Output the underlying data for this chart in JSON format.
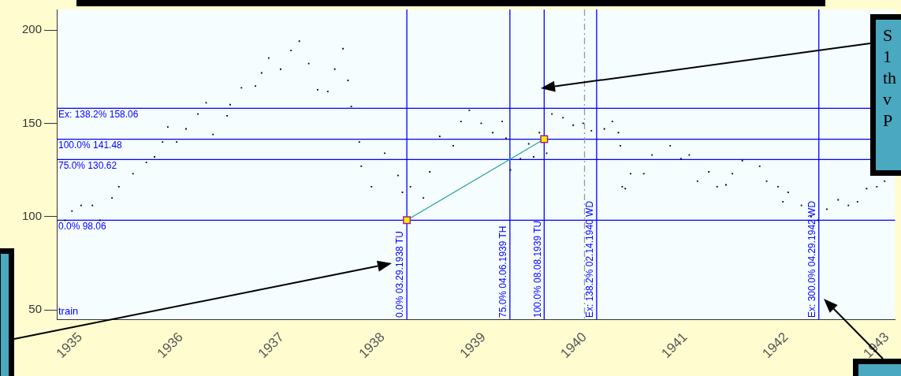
{
  "chart_data": {
    "type": "scatter",
    "marker": "square",
    "grid": false,
    "legend": false,
    "xlim": [
      "1934-10-08",
      "1943-01-30"
    ],
    "xticks": [
      "1935",
      "1936",
      "1937",
      "1938",
      "1939",
      "1940",
      "1941",
      "1942",
      "1943"
    ],
    "ylim": [
      45,
      211
    ],
    "yticks": [
      50,
      100,
      150,
      200
    ],
    "series": [
      {
        "color": "#000000",
        "x": [
          "1934-11-07",
          "1934-12-02",
          "1935-01-04",
          "1935-02-14",
          "1935-03-13",
          "1935-04-26",
          "1935-05-21",
          "1935-07-11",
          "1935-08-28",
          "1935-09-27",
          "1935-10-26",
          "1935-11-14",
          "1935-12-16",
          "1936-01-19",
          "1936-03-02",
          "1936-04-01",
          "1936-04-26",
          "1936-06-16",
          "1936-06-27",
          "1936-08-07",
          "1936-09-27",
          "1936-10-19",
          "1936-11-14",
          "1936-12-27",
          "1937-02-03",
          "1937-03-05",
          "1937-04-08",
          "1937-05-10",
          "1937-06-16",
          "1937-07-11",
          "1937-08-10",
          "1937-08-28",
          "1937-09-09",
          "1937-10-08",
          "1937-10-15",
          "1937-11-21",
          "1938-01-08",
          "1938-02-25",
          "1938-03-13",
          "1938-04-11",
          "1938-05-28",
          "1938-06-20",
          "1938-07-26",
          "1938-09-13",
          "1938-10-11",
          "1938-11-10",
          "1938-12-23",
          "1939-02-03",
          "1939-03-09",
          "1939-03-23",
          "1939-04-08",
          "1939-05-14",
          "1939-06-13",
          "1939-07-01",
          "1939-07-22",
          "1939-08-17",
          "1939-09-05",
          "1939-10-15",
          "1939-11-21",
          "1939-12-27",
          "1940-01-26",
          "1940-03-13",
          "1940-04-11",
          "1940-05-03",
          "1940-05-10",
          "1940-05-17",
          "1940-05-28",
          "1940-06-16",
          "1940-08-03",
          "1940-09-02",
          "1940-11-07",
          "1940-12-16",
          "1941-01-15",
          "1941-02-14",
          "1941-03-27",
          "1941-04-26",
          "1941-05-28",
          "1941-06-20",
          "1941-07-26",
          "1941-09-27",
          "1941-10-22",
          "1941-12-02",
          "1941-12-20",
          "1942-01-08",
          "1942-02-25",
          "1942-04-01",
          "1942-04-26",
          "1942-05-28",
          "1942-07-08",
          "1942-08-14",
          "1942-09-16",
          "1942-10-19",
          "1942-11-25",
          "1942-12-23"
        ],
        "values": [
          98,
          103,
          106,
          106,
          98,
          110,
          116,
          123,
          129,
          132,
          140,
          148,
          140,
          147,
          155,
          161,
          144,
          154,
          160,
          169,
          170,
          177,
          185,
          179,
          189,
          194,
          182,
          168,
          167,
          179,
          190,
          173,
          159,
          140,
          127,
          116,
          134,
          122,
          113,
          116,
          110,
          124,
          143,
          138,
          151,
          157,
          150,
          145,
          151,
          142,
          125,
          131,
          139,
          132,
          145,
          134,
          155,
          153,
          149,
          150,
          146,
          147,
          151,
          145,
          138,
          116,
          115,
          123,
          123,
          133,
          138,
          131,
          133,
          119,
          124,
          116,
          117,
          123,
          130,
          127,
          119,
          116,
          108,
          113,
          106,
          100,
          98,
          104,
          109,
          106,
          108,
          115,
          116,
          119
        ]
      },
      {
        "type": "line",
        "marker": "square",
        "color": "#2a9d9d",
        "x": [
          "1938-03-29",
          "1939-08-08"
        ],
        "values": [
          98.1,
          141.5
        ]
      }
    ],
    "ref_lines": [
      {
        "axis": "y",
        "value": 158.06,
        "label": "Ex: 138.2% 158.06",
        "color": "#0000ff"
      },
      {
        "axis": "y",
        "value": 141.48,
        "label": "100.0% 141.48",
        "color": "#0000ff"
      },
      {
        "axis": "y",
        "value": 130.62,
        "label": "75.0% 130.62",
        "color": "#0000ff"
      },
      {
        "axis": "y",
        "value": 98.06,
        "label": "0.0% 98.06",
        "color": "#0000ff"
      },
      {
        "axis": "x",
        "value": "1938-03-29",
        "label": "0.0% 03.29.1938 TU",
        "color": "#0000ff"
      },
      {
        "axis": "x",
        "value": "1939-04-06",
        "label": "75.0% 04.06.1939 TH",
        "color": "#0000ff"
      },
      {
        "axis": "x",
        "value": "1939-08-08",
        "label": "100.0% 08.08.1939 TU",
        "color": "#0000ff"
      },
      {
        "axis": "x",
        "value": "1940-01-01",
        "color": "#999999",
        "line_style": "dashed"
      },
      {
        "axis": "x",
        "value": "1940-02-14",
        "label": "Ex: 138.2% 02.14.1940 WD",
        "color": "#0000ff"
      },
      {
        "axis": "x",
        "value": "1942-04-29",
        "label": "Ex: 300.0% 04.29.1942 WD",
        "color": "#0000ff"
      }
    ],
    "annotations": [
      "train",
      "S\n1\nth\nv\nP"
    ]
  }
}
